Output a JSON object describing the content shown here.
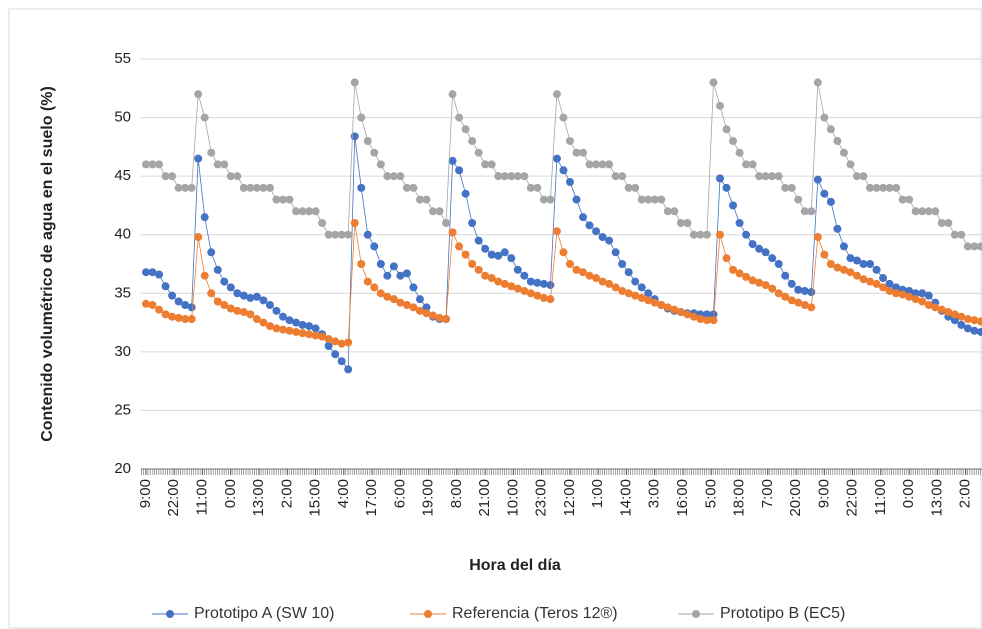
{
  "chart_data": {
    "type": "line",
    "y_label": "Contenido volumétrico de agua en el suelo (%)",
    "x_label": "Hora del día",
    "xlim": [
      -2.3,
      384.5
    ],
    "xticks": [
      {
        "value": 0,
        "label": "9:00"
      },
      {
        "value": 13,
        "label": "22:00"
      },
      {
        "value": 26,
        "label": "11:00"
      },
      {
        "value": 39,
        "label": "0:00"
      },
      {
        "value": 52,
        "label": "13:00"
      },
      {
        "value": 65,
        "label": "2:00"
      },
      {
        "value": 78,
        "label": "15:00"
      },
      {
        "value": 91,
        "label": "4:00"
      },
      {
        "value": 104,
        "label": "17:00"
      },
      {
        "value": 117,
        "label": "6:00"
      },
      {
        "value": 130,
        "label": "19:00"
      },
      {
        "value": 143,
        "label": "8:00"
      },
      {
        "value": 156,
        "label": "21:00"
      },
      {
        "value": 169,
        "label": "10:00"
      },
      {
        "value": 182,
        "label": "23:00"
      },
      {
        "value": 195,
        "label": "12:00"
      },
      {
        "value": 208,
        "label": "1:00"
      },
      {
        "value": 221,
        "label": "14:00"
      },
      {
        "value": 234,
        "label": "3:00"
      },
      {
        "value": 247,
        "label": "16:00"
      },
      {
        "value": 260,
        "label": "5:00"
      },
      {
        "value": 273,
        "label": "18:00"
      },
      {
        "value": 286,
        "label": "7:00"
      },
      {
        "value": 299,
        "label": "20:00"
      },
      {
        "value": 312,
        "label": "9:00"
      },
      {
        "value": 325,
        "label": "22:00"
      },
      {
        "value": 338,
        "label": "11:00"
      },
      {
        "value": 351,
        "label": "0:00"
      },
      {
        "value": 364,
        "label": "13:00"
      },
      {
        "value": 377,
        "label": "2:00"
      }
    ],
    "ylim": [
      20,
      55
    ],
    "yticks": [
      20,
      25,
      30,
      35,
      40,
      45,
      50,
      55
    ],
    "grid": true,
    "legend": "bottom",
    "x": [
      0,
      3,
      6,
      9,
      12,
      15,
      18,
      21,
      24,
      27,
      30,
      33,
      36,
      39,
      42,
      45,
      48,
      51,
      54,
      57,
      60,
      63,
      66,
      69,
      72,
      75,
      78,
      81,
      84,
      87,
      90,
      93,
      96,
      99,
      102,
      105,
      108,
      111,
      114,
      117,
      120,
      123,
      126,
      129,
      132,
      135,
      138,
      141,
      144,
      147,
      150,
      153,
      156,
      159,
      162,
      165,
      168,
      171,
      174,
      177,
      180,
      183,
      186,
      189,
      192,
      195,
      198,
      201,
      204,
      207,
      210,
      213,
      216,
      219,
      222,
      225,
      228,
      231,
      234,
      237,
      240,
      243,
      246,
      249,
      252,
      255,
      258,
      261,
      264,
      267,
      270,
      273,
      276,
      279,
      282,
      285,
      288,
      291,
      294,
      297,
      300,
      303,
      306,
      309,
      312,
      315,
      318,
      321,
      324,
      327,
      330,
      333,
      336,
      339,
      342,
      345,
      348,
      351,
      354,
      357,
      360,
      363,
      366,
      369,
      372,
      375,
      378,
      381,
      384
    ],
    "series": [
      {
        "name": "Prototipo A (SW 10)",
        "color": "#4472c4",
        "values": [
          36.8,
          36.8,
          36.6,
          35.6,
          34.8,
          34.3,
          34.0,
          33.8,
          46.5,
          41.5,
          38.5,
          37.0,
          36.0,
          35.5,
          35.0,
          34.8,
          34.6,
          34.7,
          34.4,
          34.0,
          33.5,
          33.0,
          32.7,
          32.5,
          32.3,
          32.2,
          32.0,
          31.5,
          30.5,
          29.8,
          29.2,
          28.5,
          48.4,
          44.0,
          40.0,
          39.0,
          37.5,
          36.5,
          37.3,
          36.5,
          36.7,
          35.5,
          34.5,
          33.8,
          33.0,
          32.8,
          32.8,
          46.3,
          45.5,
          43.5,
          41.0,
          39.5,
          38.8,
          38.3,
          38.2,
          38.5,
          38.0,
          37.0,
          36.5,
          36.0,
          35.9,
          35.8,
          35.7,
          46.5,
          45.5,
          44.5,
          43.0,
          41.5,
          40.8,
          40.3,
          39.8,
          39.5,
          38.5,
          37.5,
          36.8,
          36.0,
          35.5,
          35.0,
          34.5,
          34.0,
          33.7,
          33.5,
          33.4,
          33.3,
          33.3,
          33.2,
          33.2,
          33.2,
          44.8,
          44.0,
          42.5,
          41.0,
          40.0,
          39.2,
          38.8,
          38.5,
          38.0,
          37.5,
          36.5,
          35.8,
          35.3,
          35.2,
          35.1,
          44.7,
          43.5,
          42.8,
          40.5,
          39.0,
          38.0,
          37.8,
          37.5,
          37.5,
          37.0,
          36.3,
          35.8,
          35.5,
          35.3,
          35.2,
          35.0,
          35.0,
          34.8,
          34.2,
          33.5,
          33.0,
          32.7,
          32.3,
          32.0,
          31.8,
          31.7
        ]
      },
      {
        "name": "Referencia (Teros 12®)",
        "color": "#ed7d31",
        "values": [
          34.1,
          34.0,
          33.6,
          33.2,
          33.0,
          32.9,
          32.8,
          32.8,
          39.8,
          36.5,
          35.0,
          34.3,
          34.0,
          33.7,
          33.5,
          33.4,
          33.2,
          32.8,
          32.5,
          32.2,
          32.0,
          31.9,
          31.8,
          31.7,
          31.6,
          31.5,
          31.4,
          31.3,
          31.1,
          30.9,
          30.7,
          30.8,
          41.0,
          37.5,
          36.0,
          35.5,
          35.0,
          34.7,
          34.5,
          34.2,
          34.0,
          33.8,
          33.5,
          33.3,
          33.1,
          32.9,
          32.8,
          40.2,
          39.0,
          38.3,
          37.5,
          37.0,
          36.5,
          36.3,
          36.0,
          35.8,
          35.6,
          35.4,
          35.2,
          35.0,
          34.8,
          34.6,
          34.5,
          40.3,
          38.5,
          37.5,
          37.0,
          36.8,
          36.5,
          36.3,
          36.0,
          35.8,
          35.5,
          35.2,
          35.0,
          34.8,
          34.6,
          34.4,
          34.2,
          34.0,
          33.8,
          33.6,
          33.4,
          33.2,
          33.0,
          32.8,
          32.7,
          32.7,
          40.0,
          38.0,
          37.0,
          36.7,
          36.4,
          36.1,
          35.9,
          35.7,
          35.4,
          35.0,
          34.7,
          34.4,
          34.2,
          34.0,
          33.8,
          39.8,
          38.3,
          37.5,
          37.2,
          37.0,
          36.8,
          36.5,
          36.2,
          36.0,
          35.8,
          35.5,
          35.2,
          35.0,
          34.9,
          34.7,
          34.5,
          34.3,
          34.0,
          33.8,
          33.6,
          33.4,
          33.2,
          33.0,
          32.8,
          32.7,
          32.6
        ]
      },
      {
        "name": "Prototipo B (EC5)",
        "color": "#a5a5a5",
        "values": [
          46,
          46,
          46,
          45,
          45,
          44,
          44,
          44,
          52,
          50,
          47,
          46,
          46,
          45,
          45,
          44,
          44,
          44,
          44,
          44,
          43,
          43,
          43,
          42,
          42,
          42,
          42,
          41,
          40,
          40,
          40,
          40,
          53,
          50,
          48,
          47,
          46,
          45,
          45,
          45,
          44,
          44,
          43,
          43,
          42,
          42,
          41,
          52,
          50,
          49,
          48,
          47,
          46,
          46,
          45,
          45,
          45,
          45,
          45,
          44,
          44,
          43,
          43,
          52,
          50,
          48,
          47,
          47,
          46,
          46,
          46,
          46,
          45,
          45,
          44,
          44,
          43,
          43,
          43,
          43,
          42,
          42,
          41,
          41,
          40,
          40,
          40,
          53,
          51,
          49,
          48,
          47,
          46,
          46,
          45,
          45,
          45,
          45,
          44,
          44,
          43,
          42,
          42,
          53,
          50,
          49,
          48,
          47,
          46,
          45,
          45,
          44,
          44,
          44,
          44,
          44,
          43,
          43,
          42,
          42,
          42,
          42,
          41,
          41,
          40,
          40,
          39,
          39,
          39
        ]
      }
    ]
  }
}
